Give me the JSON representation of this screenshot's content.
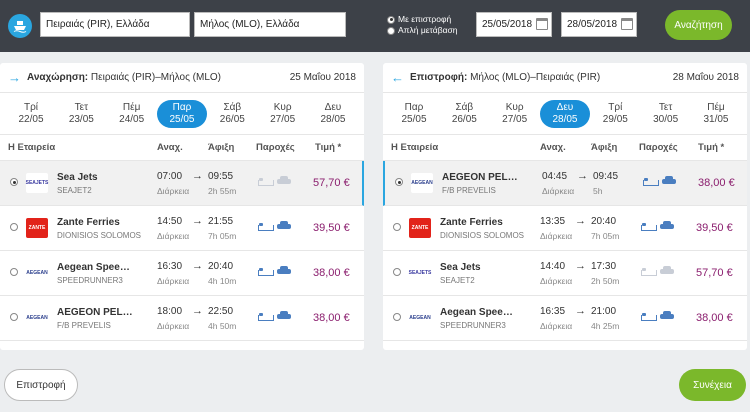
{
  "search": {
    "from": "Πειραιάς (PIR), Ελλάδα",
    "to": "Μήλος (MLO), Ελλάδα",
    "trip_types": [
      {
        "label": "Με επιστροφή",
        "selected": true
      },
      {
        "label": "Απλή μετάβαση",
        "selected": false
      }
    ],
    "depart_date": "25/05/2018",
    "return_date": "28/05/2018",
    "search_label": "Αναζήτηση"
  },
  "outbound": {
    "title_bold": "Αναχώρηση:",
    "title_route": " Πειραιάς (PIR)–Μήλος (MLO)",
    "date": "25 Μαΐου 2018",
    "days": [
      {
        "d": "Τρί",
        "n": "22/05"
      },
      {
        "d": "Τετ",
        "n": "23/05"
      },
      {
        "d": "Πέμ",
        "n": "24/05"
      },
      {
        "d": "Παρ",
        "n": "25/05"
      },
      {
        "d": "Σάβ",
        "n": "26/05"
      },
      {
        "d": "Κυρ",
        "n": "27/05"
      },
      {
        "d": "Δευ",
        "n": "28/05"
      }
    ],
    "selected_day": 3,
    "headers": {
      "company": "Η Εταιρεία",
      "dep": "Αναχ.",
      "arr": "Άφιξη",
      "amen": "Παροχές",
      "price": "Τιμή *"
    },
    "rows": [
      {
        "logo": "seajets",
        "company": "Sea Jets",
        "vessel": "SEAJET2",
        "dep": "07:00",
        "arr": "09:55",
        "dur_label": "Διάρκεια",
        "dur": "2h 55m",
        "bed": false,
        "car": false,
        "price": "57,70 €",
        "selected": true
      },
      {
        "logo": "zante",
        "company": "Zante Ferries",
        "vessel": "DIONISIOS SOLOMOS",
        "dep": "14:50",
        "arr": "21:55",
        "dur_label": "Διάρκεια",
        "dur": "7h 05m",
        "bed": true,
        "car": true,
        "price": "39,50 €",
        "selected": false
      },
      {
        "logo": "aegean",
        "company": "Aegean Speedlines",
        "vessel": "SPEEDRUNNER3",
        "dep": "16:30",
        "arr": "20:40",
        "dur_label": "Διάρκεια",
        "dur": "4h 10m",
        "bed": true,
        "car": true,
        "price": "38,00 €",
        "selected": false
      },
      {
        "logo": "aegean",
        "company": "AEGEON PELAGOS",
        "vessel": "F/B PREVELIS",
        "dep": "18:00",
        "arr": "22:50",
        "dur_label": "Διάρκεια",
        "dur": "4h 50m",
        "bed": true,
        "car": true,
        "price": "38,00 €",
        "selected": false
      }
    ]
  },
  "inbound": {
    "title_bold": "Επιστροφή:",
    "title_route": " Μήλος (MLO)–Πειραιάς (PIR)",
    "date": "28 Μαΐου 2018",
    "days": [
      {
        "d": "Παρ",
        "n": "25/05"
      },
      {
        "d": "Σάβ",
        "n": "26/05"
      },
      {
        "d": "Κυρ",
        "n": "27/05"
      },
      {
        "d": "Δευ",
        "n": "28/05"
      },
      {
        "d": "Τρί",
        "n": "29/05"
      },
      {
        "d": "Τετ",
        "n": "30/05"
      },
      {
        "d": "Πέμ",
        "n": "31/05"
      }
    ],
    "selected_day": 3,
    "headers": {
      "company": "Η Εταιρεία",
      "dep": "Αναχ.",
      "arr": "Άφιξη",
      "amen": "Παροχές",
      "price": "Τιμή *"
    },
    "rows": [
      {
        "logo": "aegean",
        "company": "AEGEON PELAGOS",
        "vessel": "F/B PREVELIS",
        "dep": "04:45",
        "arr": "09:45",
        "dur_label": "Διάρκεια",
        "dur": "5h",
        "bed": true,
        "car": true,
        "price": "38,00 €",
        "selected": true
      },
      {
        "logo": "zante",
        "company": "Zante Ferries",
        "vessel": "DIONISIOS SOLOMOS",
        "dep": "13:35",
        "arr": "20:40",
        "dur_label": "Διάρκεια",
        "dur": "7h 05m",
        "bed": true,
        "car": true,
        "price": "39,50 €",
        "selected": false
      },
      {
        "logo": "seajets",
        "company": "Sea Jets",
        "vessel": "SEAJET2",
        "dep": "14:40",
        "arr": "17:30",
        "dur_label": "Διάρκεια",
        "dur": "2h 50m",
        "bed": false,
        "car": false,
        "price": "57,70 €",
        "selected": false
      },
      {
        "logo": "aegean",
        "company": "Aegean Speedlines",
        "vessel": "SPEEDRUNNER3",
        "dep": "16:35",
        "arr": "21:00",
        "dur_label": "Διάρκεια",
        "dur": "4h 25m",
        "bed": true,
        "car": true,
        "price": "38,00 €",
        "selected": false
      }
    ]
  },
  "footer": {
    "back_label": "Επιστροφή",
    "next_label": "Συνέχεια"
  }
}
